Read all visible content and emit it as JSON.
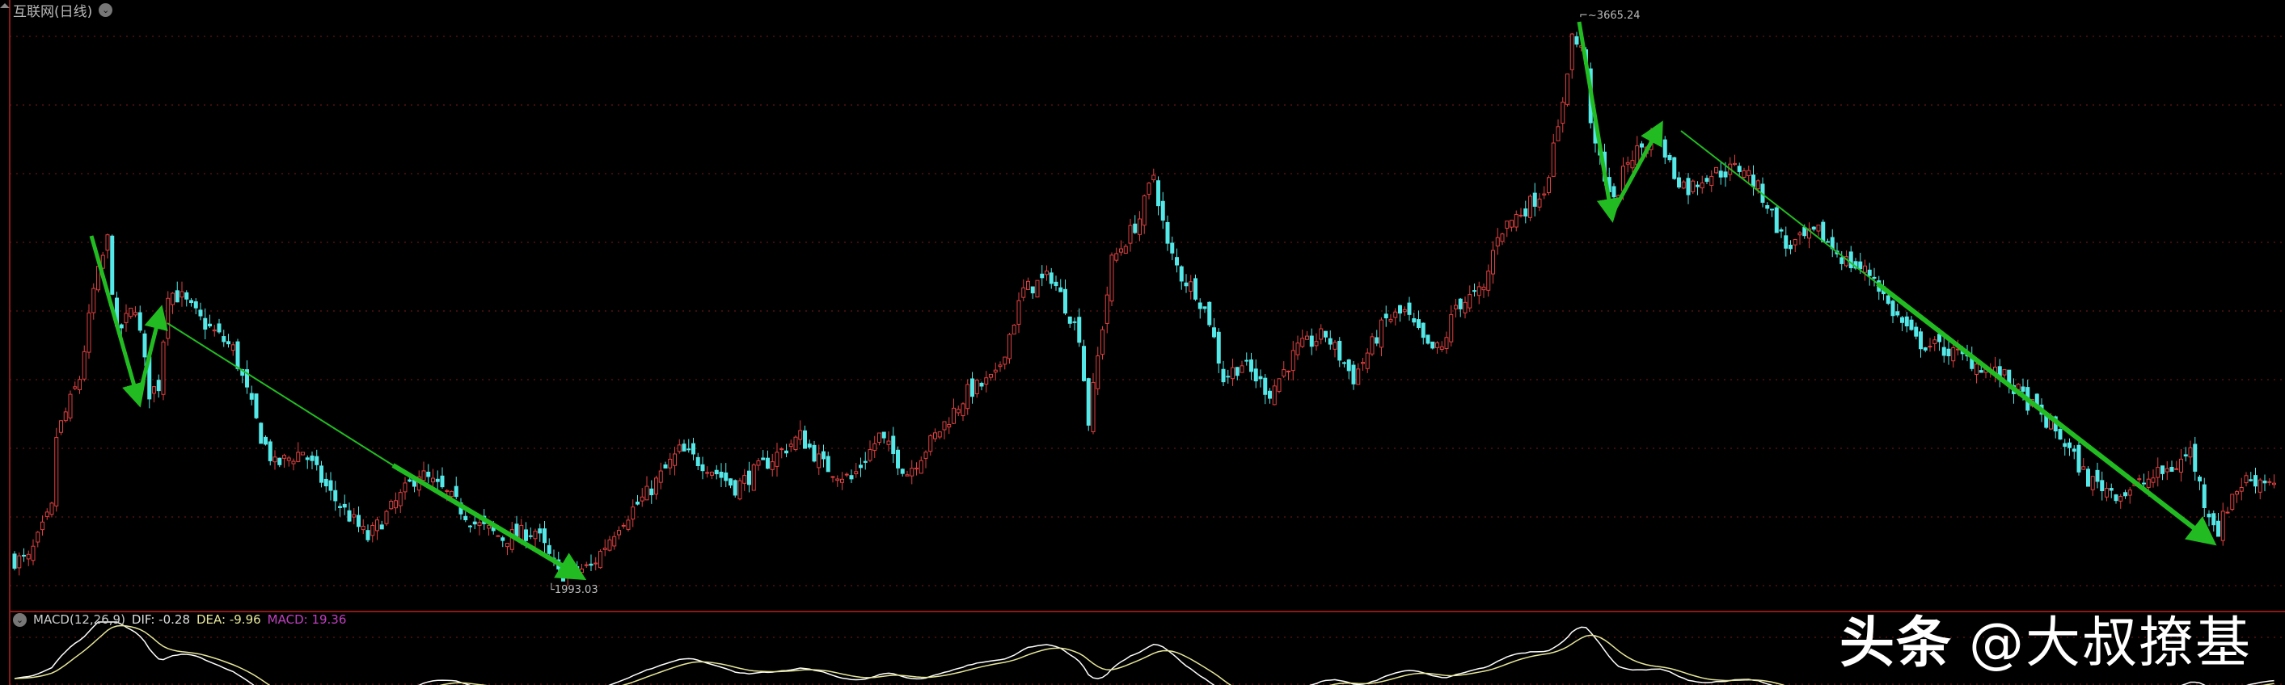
{
  "header": {
    "title": "互联网(日线)",
    "dropdown_icon": "chevron-down-icon"
  },
  "macd": {
    "label": "MACD(12,26,9)",
    "dif": "DIF: -0.28",
    "dea": "DEA: -9.96",
    "macd": "MACD: 19.36"
  },
  "watermark": {
    "brand": "头条",
    "handle": "@大叔撩基"
  },
  "colors": {
    "up": "#e04040",
    "down": "#54e8e8",
    "grid": "#7a1a1a",
    "arrow": "#22bb22",
    "dif": "#ffffff",
    "dea": "#e6e69a"
  },
  "chart_data": {
    "type": "candlestick",
    "title": "互联网(日线)",
    "grid": true,
    "high_label": "3665.24",
    "low_label": "1993.03",
    "high": 3665.24,
    "low": 1993.03,
    "ylim": [
      1925,
      3700
    ],
    "close_path": {
      "bar": [
        3,
        8,
        9,
        14,
        17,
        20,
        22,
        26,
        29,
        31,
        33,
        36,
        40,
        47,
        50,
        53,
        56,
        62,
        68,
        76,
        81,
        87,
        93,
        99,
        105,
        112,
        117,
        124,
        130,
        136,
        143,
        149,
        155,
        161,
        169,
        174,
        180,
        186,
        192,
        198,
        205,
        211,
        217,
        223,
        229,
        231,
        236,
        242,
        245,
        248,
        251,
        254,
        257,
        260,
        264,
        270,
        276,
        282,
        288,
        295,
        299,
        304,
        307,
        310,
        316,
        319,
        326,
        329,
        332,
        335,
        338,
        339,
        341,
        344,
        347,
        352,
        353,
        357,
        360,
        364,
        372,
        377,
        381,
        388,
        394,
        400,
        403,
        409,
        415,
        422,
        428,
        434,
        440,
        446,
        453,
        459,
        465,
        468,
        471,
        474,
        477,
        480,
        486
      ],
      "close": [
        2063,
        2213,
        2427,
        2599,
        2856,
        3006,
        2727,
        2813,
        2556,
        2577,
        2856,
        2834,
        2770,
        2684,
        2556,
        2427,
        2341,
        2384,
        2256,
        2127,
        2213,
        2320,
        2256,
        2170,
        2127,
        2149,
        2020,
        2041,
        2170,
        2256,
        2384,
        2341,
        2277,
        2341,
        2427,
        2341,
        2299,
        2427,
        2320,
        2427,
        2556,
        2599,
        2856,
        2899,
        2727,
        2470,
        2942,
        3070,
        3199,
        2984,
        2899,
        2856,
        2770,
        2599,
        2642,
        2556,
        2684,
        2727,
        2599,
        2770,
        2792,
        2684,
        2684,
        2813,
        2856,
        3027,
        3113,
        3156,
        3327,
        3606,
        3542,
        3327,
        3242,
        3113,
        3242,
        3306,
        3327,
        3199,
        3156,
        3199,
        3220,
        3113,
        2984,
        3027,
        2942,
        2899,
        2813,
        2706,
        2684,
        2642,
        2599,
        2513,
        2427,
        2299,
        2256,
        2299,
        2341,
        2384,
        2234,
        2149,
        2256,
        2299,
        2299
      ]
    },
    "indicator": {
      "name": "MACD",
      "params": [
        12,
        26,
        9
      ],
      "dif": -0.28,
      "dea": -9.96,
      "macd": 19.36
    }
  }
}
